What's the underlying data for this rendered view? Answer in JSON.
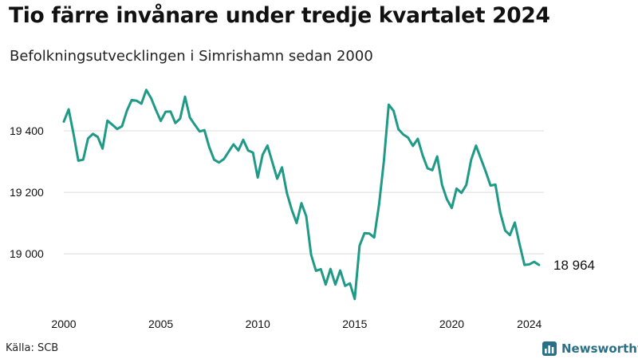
{
  "header": {
    "title": "Tio färre invånare under tredje kvartalet 2024",
    "subtitle": "Befolkningsutvecklingen i Simrishamn sedan 2000"
  },
  "footer": {
    "source": "Källa: SCB",
    "brand": "Newsworthy",
    "brand_icon": "bar-chart-icon"
  },
  "colors": {
    "line": "#1f9a86",
    "grid": "#dddddd",
    "brand": "#2a6f86"
  },
  "chart_data": {
    "type": "line",
    "title": "Tio färre invånare under tredje kvartalet 2024",
    "subtitle": "Befolkningsutvecklingen i Simrishamn sedan 2000",
    "xlabel": "",
    "ylabel": "",
    "xlim": [
      2000,
      2024.75
    ],
    "ylim": [
      18850,
      19540
    ],
    "grid": true,
    "x_ticks": [
      2000,
      2005,
      2010,
      2015,
      2020,
      2024
    ],
    "x_tick_labels": [
      "2000",
      "2005",
      "2010",
      "2015",
      "2020",
      "2024"
    ],
    "y_ticks": [
      19000,
      19200,
      19400
    ],
    "y_tick_labels": [
      "19 000",
      "19 200",
      "19 400"
    ],
    "end_label": "18 964",
    "series": [
      {
        "x": [
          2000,
          2000.25,
          2000.5,
          2000.75,
          2001,
          2001.25,
          2001.5,
          2001.75,
          2002,
          2002.25,
          2002.5,
          2002.75,
          2003,
          2003.25,
          2003.5,
          2003.75,
          2004,
          2004.25,
          2004.5,
          2004.75,
          2005,
          2005.25,
          2005.5,
          2005.75,
          2006,
          2006.25,
          2006.5,
          2006.75,
          2007,
          2007.25,
          2007.5,
          2007.75,
          2008,
          2008.25,
          2008.5,
          2008.75,
          2009,
          2009.25,
          2009.5,
          2009.75,
          2010,
          2010.25,
          2010.5,
          2010.75,
          2011,
          2011.25,
          2011.5,
          2011.75,
          2012,
          2012.25,
          2012.5,
          2012.75,
          2013,
          2013.25,
          2013.5,
          2013.75,
          2014,
          2014.25,
          2014.5,
          2014.75,
          2015,
          2015.25,
          2015.5,
          2015.75,
          2016,
          2016.25,
          2016.5,
          2016.75,
          2017,
          2017.25,
          2017.5,
          2017.75,
          2018,
          2018.25,
          2018.5,
          2018.75,
          2019,
          2019.25,
          2019.5,
          2019.75,
          2020,
          2020.25,
          2020.5,
          2020.75,
          2021,
          2021.25,
          2021.5,
          2021.75,
          2022,
          2022.25,
          2022.5,
          2022.75,
          2023,
          2023.25,
          2023.5,
          2023.75,
          2024,
          2024.25,
          2024.5
        ],
        "values": [
          19430,
          19470,
          19390,
          19303,
          19306,
          19375,
          19390,
          19380,
          19342,
          19433,
          19420,
          19406,
          19415,
          19465,
          19500,
          19498,
          19488,
          19533,
          19506,
          19468,
          19432,
          19462,
          19463,
          19425,
          19440,
          19511,
          19443,
          19420,
          19398,
          19402,
          19347,
          19306,
          19297,
          19308,
          19332,
          19356,
          19336,
          19371,
          19336,
          19329,
          19248,
          19322,
          19352,
          19298,
          19244,
          19281,
          19198,
          19144,
          19100,
          19165,
          19122,
          18997,
          18945,
          18950,
          18900,
          18951,
          18900,
          18946,
          18896,
          18904,
          18853,
          19027,
          19067,
          19066,
          19053,
          19160,
          19300,
          19485,
          19465,
          19405,
          19388,
          19378,
          19351,
          19374,
          19320,
          19278,
          19272,
          19317,
          19224,
          19177,
          19149,
          19212,
          19198,
          19224,
          19306,
          19352,
          19310,
          19268,
          19222,
          19225,
          19134,
          19076,
          19061,
          19102,
          19030,
          18964,
          18966,
          18974,
          18964
        ]
      }
    ]
  }
}
